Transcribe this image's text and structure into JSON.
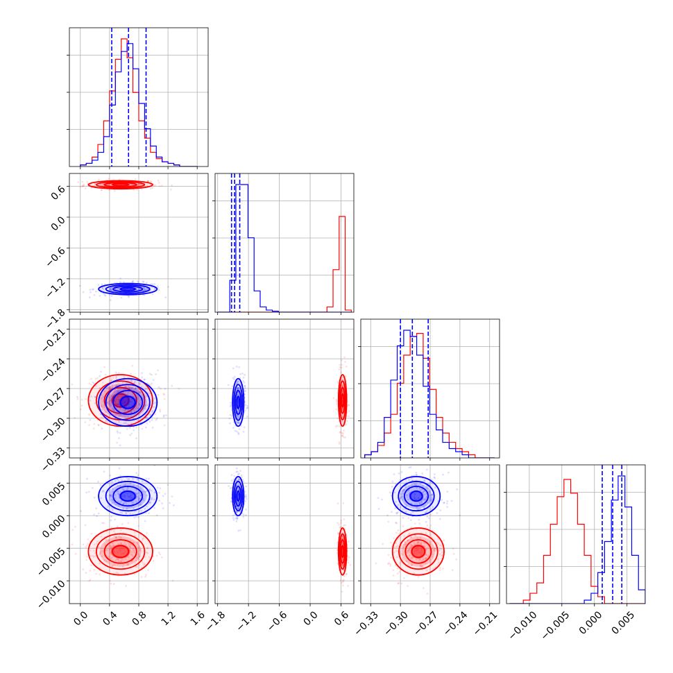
{
  "chart_data": {
    "type": "corner",
    "params": [
      {
        "range": [
          -0.15,
          1.75
        ],
        "ticks": [
          0.0,
          0.4,
          0.8,
          1.2,
          1.6
        ],
        "tick_labels": [
          "0.0",
          "0.4",
          "0.8",
          "1.2",
          "1.6"
        ]
      },
      {
        "range": [
          -1.85,
          0.85
        ],
        "ticks": [
          -1.8,
          -1.2,
          -0.6,
          0.0,
          0.6
        ],
        "tick_labels": [
          "−1.8",
          "−1.2",
          "−0.6",
          "0.0",
          "0.6"
        ]
      },
      {
        "range": [
          -0.34,
          -0.2
        ],
        "ticks": [
          -0.33,
          -0.3,
          -0.27,
          -0.24,
          -0.21
        ],
        "tick_labels": [
          "−0.33",
          "−0.30",
          "−0.27",
          "−0.24",
          "−0.21"
        ]
      },
      {
        "range": [
          -0.0135,
          0.0078
        ],
        "ticks": [
          -0.01,
          -0.005,
          0.0,
          0.005
        ],
        "tick_labels": [
          "−0.010",
          "−0.005",
          "0.000",
          "0.005"
        ]
      }
    ],
    "grid": true,
    "series": [
      {
        "color": "#ff0000",
        "means": [
          0.55,
          0.63,
          -0.282,
          -0.0055
        ],
        "sds": [
          0.22,
          0.04,
          0.013,
          0.0018
        ],
        "quantiles": [],
        "hist": [
          {
            "edges": [
              0.0,
              1.6
            ],
            "counts": [
              1,
              2,
              6,
              14,
              29,
              48,
              68,
              81,
              69,
              47,
              29,
              18,
              9,
              5,
              3,
              2,
              1,
              0,
              0,
              0
            ]
          },
          {
            "edges": [
              -1.8,
              0.8
            ],
            "counts": [
              0,
              0,
              0,
              0,
              0,
              0,
              0,
              0,
              0,
              0,
              0,
              0,
              0,
              0,
              0,
              0,
              0,
              0,
              5,
              40,
              90,
              2
            ]
          },
          {
            "edges": [
              -0.336,
              -0.205
            ],
            "counts": [
              1,
              2,
              4,
              8,
              14,
              24,
              33,
              39,
              40,
              32,
              22,
              13,
              8,
              5,
              3,
              2,
              1,
              0,
              0,
              0
            ]
          },
          {
            "edges": [
              -0.013,
              0.0078
            ],
            "counts": [
              0,
              0,
              1,
              3,
              6,
              14,
              23,
              31,
              36,
              32,
              23,
              14,
              5,
              2,
              0,
              0,
              0,
              0,
              0,
              0
            ]
          }
        ]
      },
      {
        "color": "#0000ff",
        "means": [
          0.65,
          -1.4,
          -0.284,
          0.003
        ],
        "sds": [
          0.2,
          0.055,
          0.012,
          0.0015
        ],
        "quantiles": [
          [
            0.43,
            0.66,
            0.9
          ],
          [
            -1.53,
            -1.47,
            -1.37
          ],
          [
            -0.3,
            -0.288,
            -0.272
          ],
          [
            0.0012,
            0.0028,
            0.0042
          ]
        ],
        "hist": [
          {
            "edges": [
              0.0,
              1.6
            ],
            "counts": [
              1,
              2,
              4,
              9,
              19,
              39,
              60,
              73,
              78,
              62,
              40,
              24,
              13,
              6,
              3,
              2,
              1,
              0,
              0,
              0
            ]
          },
          {
            "edges": [
              -1.8,
              0.8
            ],
            "counts": [
              0,
              0,
              30,
              120,
              120,
              70,
              20,
              5,
              2,
              1,
              0,
              0,
              0,
              0,
              0,
              0,
              0,
              0,
              0,
              0,
              0,
              0
            ]
          },
          {
            "edges": [
              -0.336,
              -0.205
            ],
            "counts": [
              1,
              2,
              5,
              13,
              25,
              36,
              41,
              39,
              33,
              23,
              14,
              9,
              5,
              3,
              2,
              1,
              0,
              0,
              0,
              0
            ]
          },
          {
            "edges": [
              -0.013,
              0.0078
            ],
            "counts": [
              0,
              0,
              0,
              0,
              0,
              0,
              0,
              0,
              0,
              0,
              0,
              1,
              3,
              9,
              18,
              30,
              37,
              28,
              14,
              4
            ]
          }
        ]
      }
    ]
  }
}
